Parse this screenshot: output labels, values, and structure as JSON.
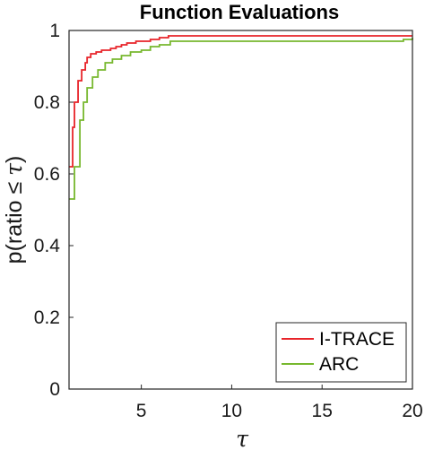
{
  "chart_data": {
    "type": "line",
    "title": "Function Evaluations",
    "xlabel": "τ",
    "ylabel_prefix": "p(ratio ≤ ",
    "ylabel_tau": "τ",
    "ylabel_suffix": ")",
    "xlim": [
      1,
      20
    ],
    "ylim": [
      0,
      1
    ],
    "xticks": [
      5,
      10,
      15,
      20
    ],
    "yticks": [
      0,
      0.2,
      0.4,
      0.6,
      0.8,
      1
    ],
    "xtick_labels": [
      "5",
      "10",
      "15",
      "20"
    ],
    "ytick_labels": [
      "0",
      "0.2",
      "0.4",
      "0.6",
      "0.8",
      "1"
    ],
    "grid": false,
    "legend_position": "bottom-right",
    "series": [
      {
        "name": "I-TRACE",
        "color": "#e8242a",
        "step": true,
        "x": [
          1.0,
          1.2,
          1.3,
          1.5,
          1.7,
          1.9,
          2.0,
          2.2,
          2.5,
          2.8,
          3.3,
          3.6,
          3.9,
          4.2,
          4.7,
          5.5,
          6.0,
          6.5,
          7.5,
          20.0
        ],
        "y": [
          0.62,
          0.73,
          0.8,
          0.86,
          0.89,
          0.91,
          0.925,
          0.935,
          0.94,
          0.945,
          0.95,
          0.955,
          0.96,
          0.965,
          0.97,
          0.975,
          0.98,
          0.985,
          0.985,
          0.985
        ]
      },
      {
        "name": "ARC",
        "color": "#77b82e",
        "step": true,
        "x": [
          1.0,
          1.3,
          1.6,
          1.8,
          2.0,
          2.3,
          2.6,
          3.0,
          3.4,
          3.9,
          4.4,
          5.0,
          5.5,
          6.0,
          6.6,
          19.5,
          20.0
        ],
        "y": [
          0.53,
          0.62,
          0.75,
          0.8,
          0.84,
          0.87,
          0.89,
          0.91,
          0.92,
          0.93,
          0.94,
          0.945,
          0.955,
          0.96,
          0.97,
          0.975,
          0.98
        ]
      }
    ]
  }
}
